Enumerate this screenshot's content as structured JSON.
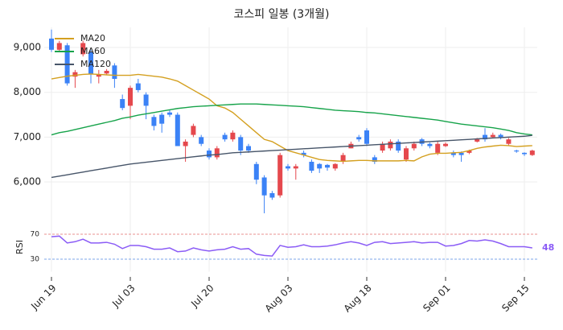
{
  "chart_data": [
    {
      "type": "candlestick",
      "title": "코스피 일봉 (3개월)",
      "categories": [
        "Jun 19",
        null,
        null,
        null,
        null,
        null,
        null,
        null,
        null,
        null,
        "Jul 03",
        null,
        null,
        null,
        null,
        null,
        null,
        null,
        null,
        null,
        "Jul 20",
        null,
        null,
        null,
        null,
        null,
        null,
        null,
        null,
        null,
        "Aug 03",
        null,
        null,
        null,
        null,
        null,
        null,
        null,
        null,
        null,
        "Aug 18",
        null,
        null,
        null,
        null,
        null,
        null,
        null,
        null,
        null,
        "Sep 01",
        null,
        null,
        null,
        null,
        null,
        null,
        null,
        null,
        null,
        "Sep 15",
        null
      ],
      "open": [
        9200,
        8950,
        9050,
        8350,
        8850,
        8900,
        8350,
        8420,
        8600,
        7850,
        7700,
        8200,
        7950,
        7450,
        7500,
        7550,
        7500,
        6800,
        7050,
        7000,
        6700,
        6550,
        7050,
        6950,
        7000,
        6800,
        6400,
        6100,
        5750,
        5700,
        6350,
        6300,
        6650,
        6450,
        6400,
        6380,
        6300,
        6450,
        6750,
        7000,
        7150,
        6550,
        6700,
        6750,
        6900,
        6500,
        6750,
        6950,
        6850,
        6650,
        6800,
        6650,
        6650,
        6650,
        6900,
        7050,
        7000,
        7050,
        6850,
        6700,
        6650,
        6600
      ],
      "high": [
        9400,
        9150,
        9100,
        8500,
        9150,
        8950,
        8500,
        8520,
        8650,
        7950,
        8150,
        8300,
        8000,
        7500,
        7550,
        7600,
        7550,
        6950,
        7300,
        7050,
        6750,
        6800,
        7100,
        7150,
        7050,
        6850,
        6450,
        6150,
        5800,
        6650,
        6400,
        6400,
        6700,
        6500,
        6420,
        6400,
        6420,
        6650,
        6900,
        7050,
        7200,
        6600,
        6900,
        6950,
        6950,
        6800,
        6900,
        6980,
        6880,
        6900,
        6880,
        6700,
        6680,
        6720,
        6980,
        7200,
        7100,
        7080,
        6980,
        6720,
        6660,
        6720
      ],
      "low": [
        8900,
        8900,
        8150,
        8100,
        8800,
        8200,
        8200,
        8400,
        8100,
        7600,
        7400,
        8000,
        7400,
        7150,
        7100,
        7450,
        6800,
        6450,
        7000,
        6800,
        6500,
        6500,
        6900,
        6900,
        6600,
        6650,
        5950,
        5300,
        5600,
        5650,
        6250,
        6050,
        6550,
        6200,
        6200,
        6250,
        6250,
        6400,
        6750,
        6900,
        6800,
        6400,
        6650,
        6700,
        6650,
        6450,
        6700,
        6800,
        6750,
        6600,
        6780,
        6550,
        6450,
        6620,
        6880,
        6900,
        6980,
        6950,
        6800,
        6650,
        6580,
        6580
      ],
      "close": [
        8950,
        9100,
        8200,
        8450,
        9100,
        8400,
        8400,
        8480,
        8300,
        7650,
        8100,
        8050,
        7700,
        7250,
        7300,
        7500,
        6800,
        6900,
        7250,
        6850,
        6550,
        6750,
        6950,
        7100,
        6700,
        6700,
        6050,
        5700,
        5650,
        6600,
        6300,
        6350,
        6600,
        6250,
        6300,
        6320,
        6400,
        6600,
        6850,
        6950,
        6850,
        6450,
        6850,
        6900,
        6700,
        6750,
        6850,
        6850,
        6800,
        6850,
        6850,
        6600,
        6600,
        6700,
        6950,
        6950,
        7050,
        7000,
        6950,
        6680,
        6620,
        6700
      ],
      "up_color": "#e5484d",
      "down_color": "#3b82f6",
      "series": [
        {
          "name": "MA20",
          "color": "#d4a020",
          "values": [
            8300,
            8330,
            8360,
            8380,
            8400,
            8410,
            8400,
            8390,
            8380,
            8380,
            8380,
            8400,
            8380,
            8360,
            8340,
            8300,
            8250,
            8150,
            8050,
            7950,
            7850,
            7700,
            7650,
            7550,
            7400,
            7250,
            7100,
            6950,
            6900,
            6800,
            6700,
            6650,
            6600,
            6550,
            6500,
            6480,
            6470,
            6460,
            6470,
            6480,
            6480,
            6470,
            6470,
            6470,
            6470,
            6480,
            6470,
            6560,
            6620,
            6640,
            6640,
            6650,
            6660,
            6700,
            6750,
            6780,
            6800,
            6820,
            6810,
            6790,
            6800,
            6810
          ]
        },
        {
          "name": "MA60",
          "color": "#16a34a",
          "values": [
            7050,
            7100,
            7130,
            7170,
            7210,
            7250,
            7290,
            7330,
            7370,
            7420,
            7450,
            7490,
            7520,
            7550,
            7580,
            7610,
            7640,
            7660,
            7680,
            7690,
            7700,
            7710,
            7720,
            7730,
            7740,
            7740,
            7740,
            7730,
            7720,
            7710,
            7700,
            7690,
            7680,
            7660,
            7640,
            7620,
            7600,
            7590,
            7580,
            7570,
            7550,
            7540,
            7520,
            7500,
            7480,
            7460,
            7440,
            7420,
            7400,
            7380,
            7350,
            7320,
            7290,
            7270,
            7250,
            7230,
            7210,
            7180,
            7150,
            7100,
            7070,
            7050
          ]
        },
        {
          "name": "MA120",
          "color": "#475569",
          "values": [
            6100,
            6130,
            6160,
            6190,
            6220,
            6250,
            6280,
            6310,
            6340,
            6370,
            6400,
            6420,
            6440,
            6460,
            6480,
            6500,
            6520,
            6540,
            6560,
            6580,
            6600,
            6610,
            6630,
            6650,
            6660,
            6670,
            6680,
            6690,
            6700,
            6710,
            6720,
            6730,
            6740,
            6750,
            6760,
            6770,
            6780,
            6790,
            6800,
            6810,
            6820,
            6830,
            6840,
            6850,
            6860,
            6870,
            6880,
            6890,
            6900,
            6910,
            6920,
            6930,
            6940,
            6950,
            6960,
            6970,
            6980,
            6990,
            7000,
            7010,
            7020,
            7040
          ]
        }
      ],
      "ylim": [
        5300,
        9450
      ],
      "yticks": [
        {
          "value": 6000,
          "label": "6,000"
        },
        {
          "value": 7000,
          "label": "7,000"
        },
        {
          "value": 8000,
          "label": "8,000"
        },
        {
          "value": 9000,
          "label": "9,000"
        }
      ],
      "grid": true,
      "legend": "upper left"
    },
    {
      "type": "line",
      "ylabel": "RSI",
      "series": [
        {
          "name": "RSI",
          "color": "#8b5cf6",
          "values": [
            66,
            67,
            56,
            58,
            62,
            56,
            56,
            57,
            54,
            47,
            52,
            52,
            50,
            46,
            46,
            48,
            42,
            43,
            48,
            45,
            43,
            45,
            46,
            50,
            46,
            47,
            38,
            36,
            35,
            52,
            49,
            50,
            53,
            50,
            50,
            51,
            53,
            56,
            58,
            56,
            52,
            57,
            58,
            55,
            56,
            57,
            58,
            56,
            57,
            57,
            51,
            52,
            55,
            60,
            59,
            61,
            59,
            55,
            50,
            50,
            50,
            48
          ]
        }
      ],
      "ylim": [
        10,
        90
      ],
      "yticks": [
        30,
        70
      ],
      "tick_line_colors": [
        "#7ea6e8",
        "#e8908f"
      ]
    }
  ]
}
